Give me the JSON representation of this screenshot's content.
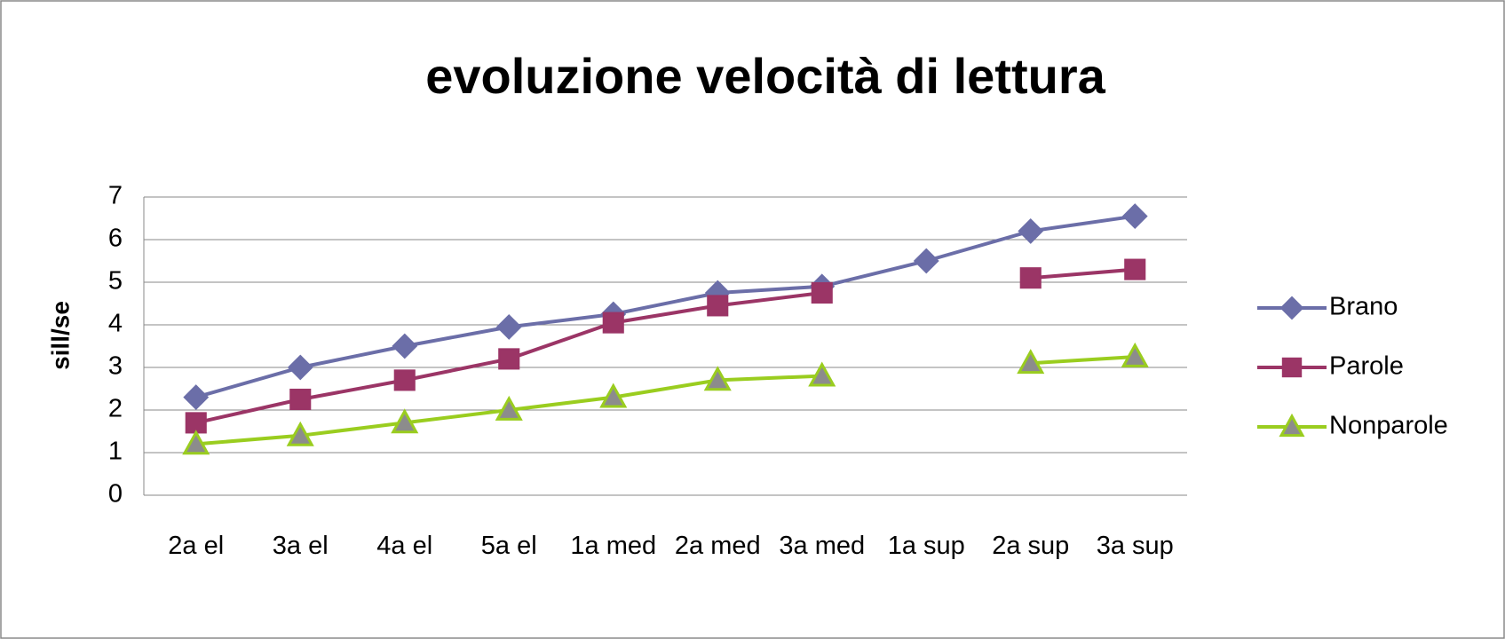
{
  "chart_data": {
    "type": "line",
    "title": "evoluzione velocità di lettura",
    "y_label": "sill/se",
    "categories": [
      "2a el",
      "3a el",
      "4a el",
      "5a el",
      "1a med",
      "2a med",
      "3a med",
      "1a sup",
      "2a sup",
      "3a sup"
    ],
    "series": [
      {
        "name": "Brano",
        "color": "#6b6ea8",
        "marker": "diamond",
        "marker_fill": "#6b6ea8",
        "values": [
          2.3,
          3.0,
          3.5,
          3.95,
          4.25,
          4.75,
          4.9,
          5.5,
          6.2,
          6.55
        ]
      },
      {
        "name": "Parole",
        "color": "#9b3566",
        "marker": "square",
        "marker_fill": "#9b3566",
        "values": [
          1.7,
          2.25,
          2.7,
          3.2,
          4.05,
          4.45,
          4.75,
          null,
          5.1,
          5.3
        ]
      },
      {
        "name": "Nonparole",
        "color": "#9acd1f",
        "marker": "triangle",
        "marker_fill": "#8c8c8c",
        "values": [
          1.2,
          1.4,
          1.7,
          2.0,
          2.3,
          2.7,
          2.8,
          null,
          3.1,
          3.25
        ]
      }
    ],
    "ylim": [
      0,
      7
    ],
    "yticks": [
      0,
      1,
      2,
      3,
      4,
      5,
      6,
      7
    ],
    "grid": true,
    "legend": "right"
  }
}
